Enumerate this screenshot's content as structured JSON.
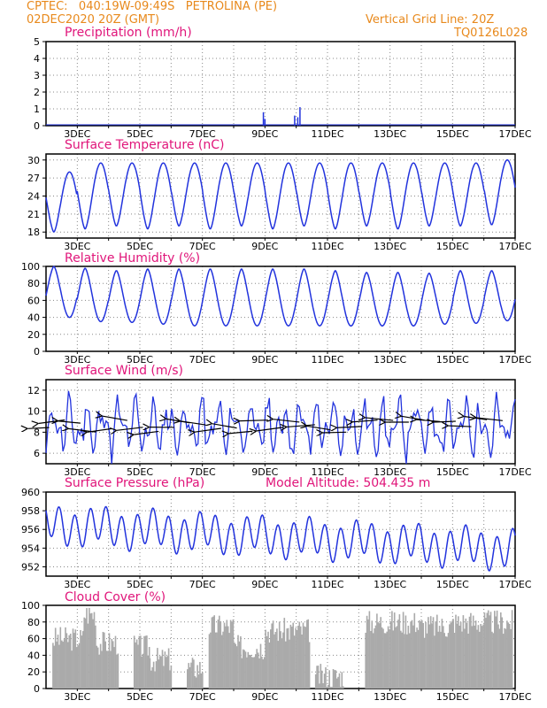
{
  "header": {
    "source_line": "CPTEC:   040:19W-09:49S   PETROLINA (PE)",
    "date_line": "02DEC2020 20Z (GMT)",
    "grid_line": "Vertical Grid Line: 20Z",
    "code": "TQ0126L028"
  },
  "model_altitude": "Model Altitude: 504.435 m",
  "colors": {
    "line": "#2233dd",
    "title": "#e0157a",
    "header": "#e8891c",
    "cloud": "#aaaaaa",
    "arrow": "#000000"
  },
  "x_tick_labels": [
    "3DEC",
    "5DEC",
    "7DEC",
    "9DEC",
    "11DEC",
    "13DEC",
    "15DEC",
    "17DEC"
  ],
  "chart_data": [
    {
      "type": "bar",
      "title": "Precipitation (mm/h)",
      "ylim": [
        0,
        5
      ],
      "yticks": [
        "0",
        "1",
        "2",
        "3",
        "4",
        "5"
      ],
      "x": [
        8.95,
        9.0,
        9.95,
        10.05,
        10.12
      ],
      "values": [
        0.8,
        0.4,
        0.6,
        0.5,
        1.1
      ]
    },
    {
      "type": "line",
      "title": "Surface Temperature (nC)",
      "ylim": [
        17,
        31
      ],
      "yticks": [
        "18",
        "21",
        "24",
        "27",
        "30"
      ],
      "min_values": [
        18,
        18.5,
        19,
        18.5,
        19,
        18.5,
        19,
        18.5,
        19,
        18.5,
        19,
        18.5,
        19,
        19,
        19.2
      ],
      "max_values": [
        28,
        29.5,
        29.5,
        29.5,
        29.5,
        29.5,
        29.5,
        29.5,
        29.5,
        29.5,
        29.5,
        29.5,
        29.5,
        29.5,
        30
      ]
    },
    {
      "type": "line",
      "title": "Relative Humidity (%)",
      "ylim": [
        0,
        100
      ],
      "yticks": [
        "0",
        "20",
        "40",
        "60",
        "80",
        "100"
      ],
      "max_values": [
        100,
        98,
        95,
        97,
        97,
        97,
        97,
        97,
        97,
        95,
        93,
        93,
        92,
        95,
        95
      ],
      "min_values": [
        40,
        35,
        34,
        32,
        30,
        30,
        30,
        30,
        30,
        30,
        30,
        30,
        32,
        33,
        36
      ]
    },
    {
      "type": "line",
      "title": "Surface Wind (m/s)",
      "ylim": [
        5,
        13
      ],
      "yticks": [
        "6",
        "8",
        "10",
        "12"
      ],
      "mean": 8.5,
      "min": 5,
      "max": 12.5
    },
    {
      "type": "line",
      "title": "Surface Pressure (hPa)",
      "ylim": [
        951,
        960
      ],
      "yticks": [
        "952",
        "954",
        "956",
        "958",
        "960"
      ],
      "min": 951.5,
      "max": 959.5
    },
    {
      "type": "area",
      "title": "Cloud Cover (%)",
      "ylim": [
        0,
        100
      ],
      "yticks": [
        "0",
        "20",
        "40",
        "60",
        "80",
        "100"
      ],
      "segments": [
        {
          "from": 2.2,
          "to": 3.2,
          "level": 60
        },
        {
          "from": 3.2,
          "to": 3.6,
          "level": 90
        },
        {
          "from": 3.6,
          "to": 4.3,
          "level": 55
        },
        {
          "from": 4.8,
          "to": 5.3,
          "level": 50
        },
        {
          "from": 5.3,
          "to": 6.0,
          "level": 35
        },
        {
          "from": 6.5,
          "to": 7.0,
          "level": 25
        },
        {
          "from": 7.2,
          "to": 8.0,
          "level": 75
        },
        {
          "from": 8.0,
          "to": 9.0,
          "level": 50
        },
        {
          "from": 9.0,
          "to": 10.4,
          "level": 70
        },
        {
          "from": 10.6,
          "to": 11.5,
          "level": 15
        },
        {
          "from": 12.2,
          "to": 13.8,
          "level": 80
        },
        {
          "from": 13.8,
          "to": 15.0,
          "level": 75
        },
        {
          "from": 15.0,
          "to": 16.9,
          "level": 80
        }
      ]
    }
  ]
}
